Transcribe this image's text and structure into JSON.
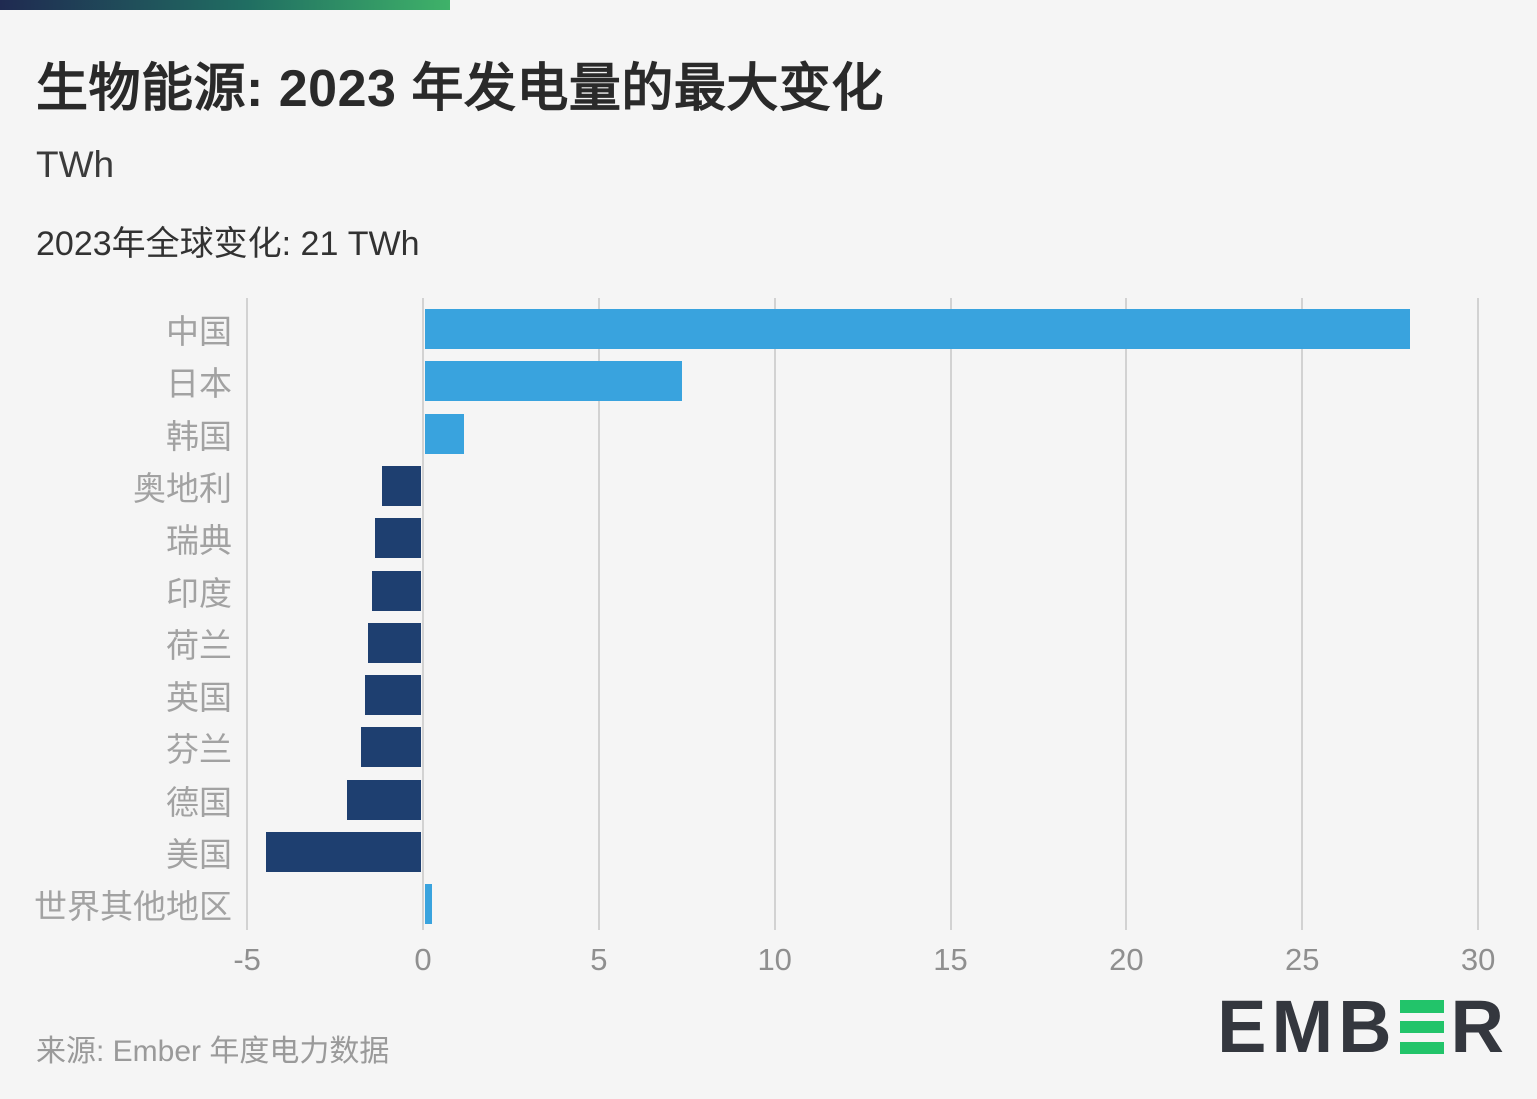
{
  "header": {
    "title": "生物能源: 2023 年发电量的最大变化",
    "unit_label": "TWh",
    "subtitle": "2023年全球变化: 21 TWh"
  },
  "chart_data": {
    "type": "bar",
    "orientation": "horizontal",
    "title": "生物能源: 2023 年发电量的最大变化",
    "xlabel": "TWh",
    "ylabel": "",
    "categories": [
      "中国",
      "日本",
      "韩国",
      "奥地利",
      "瑞典",
      "印度",
      "荷兰",
      "英国",
      "芬兰",
      "德国",
      "美国",
      "世界其他地区"
    ],
    "values": [
      28,
      7.3,
      1.1,
      -1.1,
      -1.3,
      -1.4,
      -1.5,
      -1.6,
      -1.7,
      -2.1,
      -4.4,
      0.2
    ],
    "x_ticks": [
      -5,
      0,
      5,
      10,
      15,
      20,
      25,
      30
    ],
    "xlim": [
      -5,
      30
    ],
    "grid": "vertical",
    "legend": "none",
    "colors": {
      "positive": "#39a3de",
      "negative": "#1e3f70",
      "gridline": "#d2d2d2"
    }
  },
  "footer": {
    "source": "来源: Ember 年度电力数据"
  },
  "logo": {
    "text_before_icon": "EMB",
    "text_after_icon": "R",
    "green": "#22c46a",
    "dark": "#34373e"
  },
  "brand": {
    "gradient_start": "#1f2a51",
    "gradient_mid": "#206e62",
    "gradient_end": "#3fb269"
  }
}
